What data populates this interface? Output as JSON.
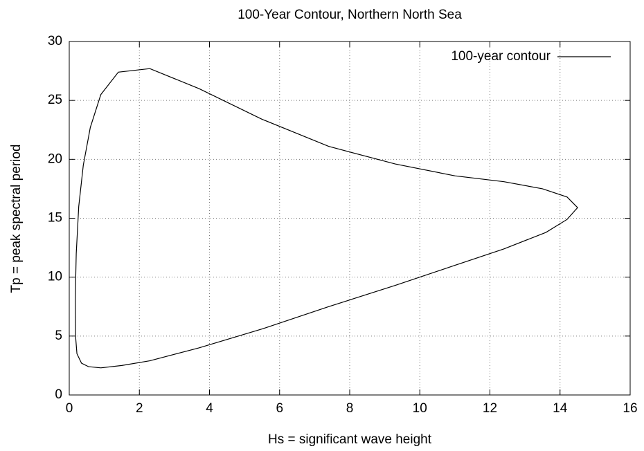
{
  "chart_data": {
    "type": "line",
    "title": "100-Year Contour, Northern North Sea",
    "xlabel": "Hs = significant wave height",
    "ylabel": "Tp = peak spectral period",
    "xlim": [
      0,
      16
    ],
    "ylim": [
      0,
      30
    ],
    "xticks": [
      0,
      2,
      4,
      6,
      8,
      10,
      12,
      14,
      16
    ],
    "yticks": [
      0,
      5,
      10,
      15,
      20,
      25,
      30
    ],
    "grid": true,
    "legend": "upper right",
    "series": [
      {
        "name": "100-year contour",
        "color": "#000000",
        "x": [
          0.9,
          1.5,
          2.3,
          3.7,
          5.5,
          7.4,
          9.3,
          11.0,
          12.4,
          13.6,
          14.2,
          14.5,
          14.2,
          13.5,
          12.4,
          11.0,
          9.3,
          7.4,
          5.5,
          3.7,
          2.3,
          1.4,
          0.9,
          0.6,
          0.4,
          0.27,
          0.2,
          0.17,
          0.18,
          0.22,
          0.35,
          0.55,
          0.9
        ],
        "values": [
          2.3,
          2.5,
          2.9,
          4.0,
          5.6,
          7.5,
          9.3,
          11.0,
          12.4,
          13.8,
          14.9,
          15.9,
          16.8,
          17.5,
          18.1,
          18.6,
          19.6,
          21.1,
          23.4,
          26.0,
          27.7,
          27.4,
          25.5,
          22.7,
          19.5,
          16.0,
          12.0,
          8.0,
          5.0,
          3.5,
          2.7,
          2.4,
          2.3
        ]
      }
    ]
  }
}
